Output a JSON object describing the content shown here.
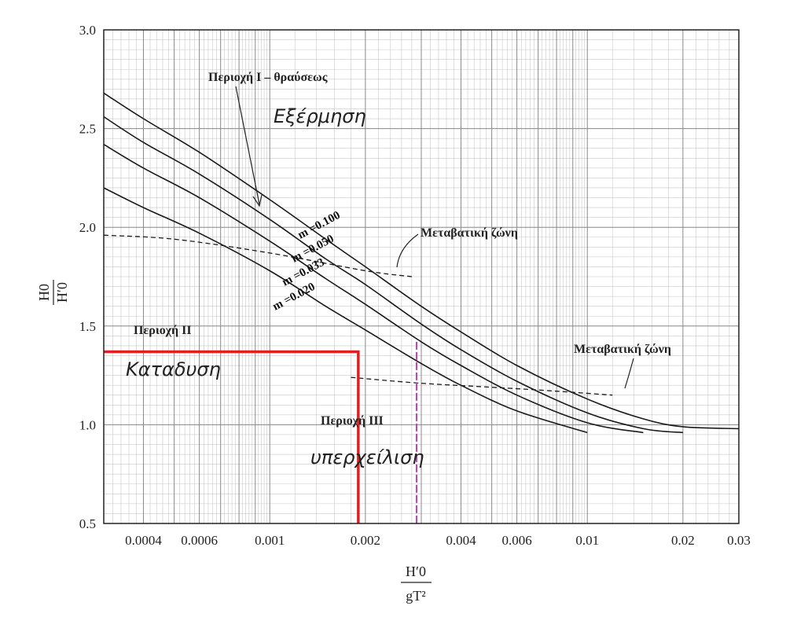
{
  "chart_data": {
    "type": "line",
    "x_scale": "log",
    "xlabel": {
      "numerator": "H′0",
      "denominator": "gT²"
    },
    "ylabel": {
      "numerator": "H0",
      "denominator": "H′0"
    },
    "xlim": [
      0.0003,
      0.03
    ],
    "ylim": [
      0.5,
      3.0
    ],
    "grid": true,
    "x_ticks": [
      {
        "value": 0.0004,
        "label": "0.0004"
      },
      {
        "value": 0.0006,
        "label": "0.0006"
      },
      {
        "value": 0.001,
        "label": "0.001"
      },
      {
        "value": 0.002,
        "label": "0.002"
      },
      {
        "value": 0.004,
        "label": "0.004"
      },
      {
        "value": 0.006,
        "label": "0.006"
      },
      {
        "value": 0.01,
        "label": "0.01"
      },
      {
        "value": 0.02,
        "label": "0.02"
      },
      {
        "value": 0.03,
        "label": "0.03"
      }
    ],
    "y_ticks": [
      {
        "value": 0.5,
        "label": "0.5"
      },
      {
        "value": 1.0,
        "label": "1.0"
      },
      {
        "value": 1.5,
        "label": "1.5"
      },
      {
        "value": 2.0,
        "label": "2.0"
      },
      {
        "value": 2.5,
        "label": "2.5"
      },
      {
        "value": 3.0,
        "label": "3.0"
      }
    ],
    "series": [
      {
        "name": "m =0.100",
        "x": [
          0.0003,
          0.0004,
          0.0006,
          0.001,
          0.0015,
          0.002,
          0.003,
          0.004,
          0.006,
          0.01,
          0.015,
          0.02,
          0.03
        ],
        "y": [
          2.68,
          2.55,
          2.38,
          2.14,
          1.94,
          1.8,
          1.6,
          1.47,
          1.3,
          1.13,
          1.03,
          0.99,
          0.98
        ]
      },
      {
        "name": "m =0.050",
        "x": [
          0.0003,
          0.0004,
          0.0006,
          0.001,
          0.0015,
          0.002,
          0.003,
          0.004,
          0.006,
          0.01,
          0.015,
          0.02
        ],
        "y": [
          2.56,
          2.43,
          2.27,
          2.04,
          1.84,
          1.71,
          1.51,
          1.38,
          1.22,
          1.06,
          0.98,
          0.96
        ]
      },
      {
        "name": "m =0.033",
        "x": [
          0.0003,
          0.0004,
          0.0006,
          0.001,
          0.0015,
          0.002,
          0.003,
          0.004,
          0.006,
          0.01,
          0.015
        ],
        "y": [
          2.42,
          2.3,
          2.15,
          1.93,
          1.74,
          1.61,
          1.42,
          1.3,
          1.15,
          1.01,
          0.96
        ]
      },
      {
        "name": "m =0.020",
        "x": [
          0.0003,
          0.0004,
          0.0006,
          0.001,
          0.0015,
          0.002,
          0.003,
          0.004,
          0.006,
          0.01
        ],
        "y": [
          2.2,
          2.1,
          1.97,
          1.78,
          1.6,
          1.48,
          1.31,
          1.2,
          1.07,
          0.96
        ]
      }
    ],
    "transition_zone_1": {
      "x": [
        0.0003,
        0.0005,
        0.001,
        0.002,
        0.0028
      ],
      "y": [
        1.96,
        1.94,
        1.87,
        1.78,
        1.75
      ]
    },
    "transition_zone_2": {
      "x": [
        0.0018,
        0.003,
        0.005,
        0.008,
        0.012
      ],
      "y": [
        1.24,
        1.21,
        1.19,
        1.17,
        1.15
      ]
    },
    "highlight_box": {
      "x0": 0.0003,
      "x1": 0.0019,
      "y0": 0.5,
      "y1": 1.37,
      "color": "#e02020"
    },
    "magenta_vline": {
      "x": 0.0029,
      "y0": 0.5,
      "y1": 1.42,
      "color": "#c040c0"
    },
    "annotations": {
      "region1": "Περιοχή Ι – θραύσεως",
      "region1_hand": "Εξέρμηση",
      "transition1": "Μεταβατική ζώνη",
      "transition2": "Μεταβατική ζώνη",
      "region2": "Περιοχή ΙΙ",
      "region2_hand": "Καταδυση",
      "region3": "Περιοχή ΙΙΙ",
      "region3_hand": "υπερχείλιση"
    }
  }
}
